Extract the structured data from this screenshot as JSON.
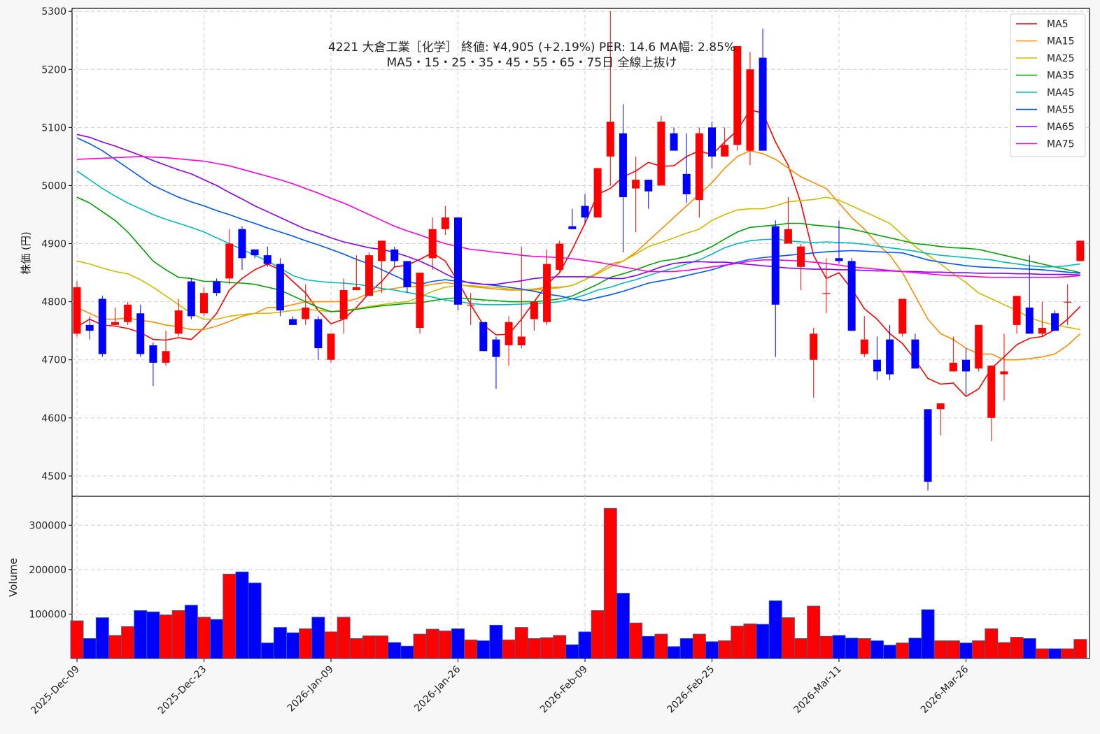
{
  "colors": {
    "background": "#f7f7f7",
    "panel": "#ffffff",
    "up": "#ff0000",
    "down": "#0000ff",
    "grid": "#cccccc",
    "frame": "#000000",
    "volume_edge": "#336699"
  },
  "chart_data": {
    "type": "candlestick",
    "title": "4221  大倉工業［化学］ 終値: ¥4,905 (+2.19%)  PER: 14.6  MA幅: 2.85%",
    "subtitle": "MA5・15・25・35・45・55・65・75日 全線上抜け",
    "ylabel": "株価 (円)",
    "volume_label": "Volume",
    "price_range": [
      4465,
      5305
    ],
    "price_ticks": [
      4500,
      4600,
      4700,
      4800,
      4900,
      5000,
      5100,
      5200,
      5300
    ],
    "volume_range": [
      0,
      365000
    ],
    "volume_ticks": [
      100000,
      200000,
      300000
    ],
    "grid": true,
    "legend_position": "top-right",
    "date_ticks": [
      {
        "i": 0,
        "label": "2025-Dec-09"
      },
      {
        "i": 10,
        "label": "2025-Dec-23"
      },
      {
        "i": 20,
        "label": "2026-Jan-09"
      },
      {
        "i": 30,
        "label": "2026-Jan-26"
      },
      {
        "i": 40,
        "label": "2026-Feb-09"
      },
      {
        "i": 50,
        "label": "2026-Feb-25"
      },
      {
        "i": 60,
        "label": "2026-Mar-11"
      },
      {
        "i": 70,
        "label": "2026-Mar-26"
      }
    ],
    "ohlc": [
      [
        4745,
        4835,
        4740,
        4825
      ],
      [
        4760,
        4775,
        4735,
        4750
      ],
      [
        4805,
        4810,
        4705,
        4710
      ],
      [
        4760,
        4790,
        4760,
        4765
      ],
      [
        4765,
        4800,
        4760,
        4795
      ],
      [
        4780,
        4795,
        4705,
        4710
      ],
      [
        4725,
        4730,
        4655,
        4695
      ],
      [
        4695,
        4750,
        4690,
        4715
      ],
      [
        4745,
        4805,
        4740,
        4785
      ],
      [
        4835,
        4840,
        4770,
        4775
      ],
      [
        4780,
        4825,
        4775,
        4815
      ],
      [
        4835,
        4840,
        4810,
        4815
      ],
      [
        4840,
        4925,
        4830,
        4900
      ],
      [
        4925,
        4930,
        4855,
        4875
      ],
      [
        4890,
        4890,
        4875,
        4880
      ],
      [
        4880,
        4895,
        4860,
        4865
      ],
      [
        4865,
        4875,
        4775,
        4785
      ],
      [
        4770,
        4775,
        4760,
        4760
      ],
      [
        4770,
        4830,
        4760,
        4790
      ],
      [
        4770,
        4775,
        4700,
        4720
      ],
      [
        4700,
        4745,
        4695,
        4745
      ],
      [
        4770,
        4840,
        4745,
        4820
      ],
      [
        4820,
        4880,
        4820,
        4825
      ],
      [
        4810,
        4885,
        4810,
        4880
      ],
      [
        4870,
        4905,
        4815,
        4905
      ],
      [
        4890,
        4895,
        4860,
        4870
      ],
      [
        4870,
        4870,
        4815,
        4825
      ],
      [
        4755,
        4850,
        4745,
        4850
      ],
      [
        4875,
        4945,
        4855,
        4925
      ],
      [
        4925,
        4965,
        4915,
        4945
      ],
      [
        4945,
        4945,
        4785,
        4795
      ],
      [
        4795,
        4815,
        4760,
        4795
      ],
      [
        4765,
        4765,
        4715,
        4715
      ],
      [
        4735,
        4740,
        4650,
        4705
      ],
      [
        4725,
        4775,
        4690,
        4765
      ],
      [
        4725,
        4895,
        4720,
        4740
      ],
      [
        4770,
        4800,
        4750,
        4800
      ],
      [
        4765,
        4890,
        4760,
        4865
      ],
      [
        4855,
        4905,
        4850,
        4900
      ],
      [
        4930,
        4960,
        4925,
        4925
      ],
      [
        4965,
        4985,
        4935,
        4945
      ],
      [
        4945,
        5030,
        4945,
        5030
      ],
      [
        5050,
        5300,
        5000,
        5110
      ],
      [
        5090,
        5140,
        4885,
        4980
      ],
      [
        4995,
        5050,
        4920,
        5010
      ],
      [
        5010,
        5010,
        4960,
        4990
      ],
      [
        5000,
        5120,
        5000,
        5110
      ],
      [
        5090,
        5100,
        5060,
        5060
      ],
      [
        5020,
        5090,
        4970,
        4985
      ],
      [
        4975,
        5100,
        4945,
        5090
      ],
      [
        5100,
        5110,
        5030,
        5050
      ],
      [
        5050,
        5100,
        5050,
        5070
      ],
      [
        5070,
        5240,
        5060,
        5240
      ],
      [
        5060,
        5230,
        5035,
        5200
      ],
      [
        5220,
        5270,
        5065,
        5060
      ],
      [
        4930,
        4940,
        4705,
        4795
      ],
      [
        4900,
        4980,
        4900,
        4925
      ],
      [
        4860,
        4900,
        4820,
        4895
      ],
      [
        4700,
        4755,
        4635,
        4745
      ],
      [
        4815,
        4875,
        4780,
        4815
      ],
      [
        4875,
        4940,
        4865,
        4870
      ],
      [
        4870,
        4875,
        4750,
        4750
      ],
      [
        4710,
        4775,
        4705,
        4735
      ],
      [
        4700,
        4740,
        4665,
        4680
      ],
      [
        4735,
        4760,
        4665,
        4675
      ],
      [
        4745,
        4805,
        4740,
        4805
      ],
      [
        4735,
        4745,
        4685,
        4685
      ],
      [
        4615,
        4615,
        4475,
        4490
      ],
      [
        4615,
        4625,
        4570,
        4625
      ],
      [
        4680,
        4740,
        4680,
        4695
      ],
      [
        4700,
        4720,
        4640,
        4680
      ],
      [
        4685,
        4760,
        4680,
        4760
      ],
      [
        4600,
        4690,
        4560,
        4690
      ],
      [
        4675,
        4745,
        4630,
        4680
      ],
      [
        4760,
        4810,
        4745,
        4810
      ],
      [
        4790,
        4880,
        4745,
        4745
      ],
      [
        4745,
        4800,
        4740,
        4755
      ],
      [
        4780,
        4785,
        4750,
        4750
      ],
      [
        4800,
        4830,
        4760,
        4800
      ],
      [
        4870,
        4905,
        4870,
        4905
      ]
    ],
    "volume": [
      85000,
      45000,
      92000,
      52000,
      72000,
      108000,
      105000,
      98000,
      108000,
      120000,
      93000,
      88000,
      190000,
      195000,
      170000,
      35000,
      70000,
      58000,
      67000,
      93000,
      60000,
      93000,
      45000,
      51000,
      51000,
      36000,
      28000,
      55000,
      66000,
      62000,
      67000,
      42000,
      40000,
      75000,
      42000,
      70000,
      45000,
      47000,
      52000,
      31000,
      60000,
      108000,
      338000,
      147000,
      80000,
      50000,
      55000,
      27000,
      45000,
      55000,
      38000,
      40000,
      73000,
      78000,
      77000,
      130000,
      92000,
      45000,
      118000,
      50000,
      52000,
      46000,
      45000,
      40000,
      30000,
      35000,
      46000,
      110000,
      40000,
      40000,
      35000,
      40000,
      67000,
      36000,
      48000,
      45000,
      22000,
      22000,
      22000,
      43000
    ],
    "series": [
      {
        "name": "MA5",
        "color": "#ff0000",
        "values": [
          4757,
          4770,
          4760,
          4758,
          4754,
          4747,
          4735,
          4734,
          4738,
          4735,
          4755,
          4780,
          4820,
          4840,
          4855,
          4865,
          4855,
          4835,
          4815,
          4785,
          4762,
          4770,
          4790,
          4815,
          4835,
          4860,
          4863,
          4873,
          4884,
          4870,
          4835,
          4795,
          4760,
          4743,
          4744,
          4770,
          4800,
          4830,
          4850,
          4890,
          4935,
          4985,
          4995,
          5015,
          5025,
          5040,
          5033,
          5034,
          5050,
          5060,
          5053,
          5075,
          5095,
          5130,
          5125,
          5075,
          5035,
          4970,
          4880,
          4840,
          4850,
          4822,
          4788,
          4770,
          4745,
          4728,
          4700,
          4668,
          4658,
          4660,
          4637,
          4650,
          4685,
          4705,
          4726,
          4737,
          4740,
          4752,
          4770,
          4792
        ]
      },
      {
        "name": "MA15",
        "color": "#ff8c00",
        "values": [
          4790,
          4780,
          4770,
          4770,
          4772,
          4768,
          4765,
          4760,
          4757,
          4752,
          4752,
          4758,
          4766,
          4775,
          4780,
          4790,
          4790,
          4795,
          4800,
          4800,
          4800,
          4800,
          4805,
          4815,
          4820,
          4823,
          4826,
          4826,
          4830,
          4833,
          4830,
          4826,
          4824,
          4822,
          4820,
          4820,
          4822,
          4825,
          4825,
          4828,
          4838,
          4850,
          4865,
          4870,
          4885,
          4905,
          4925,
          4945,
          4965,
          4985,
          5005,
          5030,
          5050,
          5060,
          5055,
          5045,
          5030,
          5015,
          5005,
          4995,
          4970,
          4945,
          4925,
          4900,
          4880,
          4850,
          4810,
          4770,
          4745,
          4735,
          4720,
          4710,
          4710,
          4700,
          4700,
          4702,
          4705,
          4710,
          4725,
          4745
        ]
      },
      {
        "name": "MA25",
        "color": "#cdbb00",
        "values": [
          4870,
          4865,
          4858,
          4852,
          4848,
          4838,
          4825,
          4810,
          4795,
          4780,
          4770,
          4770,
          4775,
          4778,
          4780,
          4780,
          4782,
          4785,
          4787,
          4785,
          4783,
          4785,
          4788,
          4792,
          4795,
          4798,
          4800,
          4808,
          4818,
          4825,
          4828,
          4828,
          4826,
          4825,
          4822,
          4820,
          4820,
          4822,
          4824,
          4828,
          4838,
          4848,
          4860,
          4870,
          4882,
          4895,
          4902,
          4910,
          4918,
          4925,
          4940,
          4950,
          4958,
          4960,
          4960,
          4965,
          4972,
          4974,
          4976,
          4980,
          4975,
          4965,
          4955,
          4945,
          4935,
          4915,
          4895,
          4880,
          4865,
          4848,
          4833,
          4815,
          4805,
          4795,
          4785,
          4773,
          4765,
          4760,
          4756,
          4752
        ]
      },
      {
        "name": "MA35",
        "color": "#00a000",
        "values": [
          4980,
          4970,
          4955,
          4940,
          4920,
          4895,
          4870,
          4855,
          4842,
          4840,
          4835,
          4835,
          4833,
          4832,
          4830,
          4825,
          4820,
          4810,
          4800,
          4790,
          4783,
          4784,
          4787,
          4790,
          4793,
          4795,
          4797,
          4798,
          4802,
          4805,
          4807,
          4805,
          4803,
          4802,
          4800,
          4800,
          4800,
          4802,
          4805,
          4810,
          4820,
          4830,
          4842,
          4848,
          4855,
          4863,
          4870,
          4873,
          4878,
          4885,
          4895,
          4908,
          4920,
          4928,
          4930,
          4932,
          4935,
          4935,
          4932,
          4930,
          4928,
          4925,
          4920,
          4915,
          4910,
          4905,
          4900,
          4898,
          4895,
          4893,
          4892,
          4890,
          4885,
          4880,
          4875,
          4870,
          4865,
          4860,
          4855,
          4850
        ]
      },
      {
        "name": "MA45",
        "color": "#00bbbb",
        "values": [
          5025,
          5010,
          4995,
          4982,
          4970,
          4960,
          4950,
          4942,
          4935,
          4928,
          4920,
          4910,
          4900,
          4890,
          4880,
          4870,
          4858,
          4845,
          4838,
          4835,
          4833,
          4832,
          4830,
          4827,
          4823,
          4820,
          4816,
          4812,
          4808,
          4803,
          4800,
          4797,
          4795,
          4795,
          4795,
          4796,
          4797,
          4798,
          4800,
          4805,
          4812,
          4820,
          4825,
          4832,
          4838,
          4845,
          4852,
          4858,
          4865,
          4872,
          4882,
          4893,
          4900,
          4905,
          4907,
          4908,
          4905,
          4903,
          4902,
          4903,
          4902,
          4901,
          4899,
          4896,
          4893,
          4890,
          4887,
          4883,
          4880,
          4878,
          4876,
          4874,
          4872,
          4868,
          4865,
          4862,
          4860,
          4860,
          4862,
          4865
        ]
      },
      {
        "name": "MA55",
        "color": "#0055ff",
        "values": [
          5082,
          5072,
          5060,
          5045,
          5030,
          5015,
          5000,
          4990,
          4980,
          4972,
          4965,
          4957,
          4950,
          4942,
          4935,
          4927,
          4920,
          4913,
          4905,
          4898,
          4890,
          4882,
          4873,
          4865,
          4855,
          4845,
          4835,
          4830,
          4835,
          4838,
          4835,
          4833,
          4830,
          4828,
          4825,
          4822,
          4818,
          4813,
          4810,
          4805,
          4802,
          4807,
          4812,
          4818,
          4825,
          4832,
          4836,
          4840,
          4845,
          4850,
          4855,
          4862,
          4868,
          4873,
          4876,
          4878,
          4880,
          4882,
          4884,
          4886,
          4887,
          4888,
          4887,
          4886,
          4885,
          4884,
          4878,
          4872,
          4868,
          4865,
          4862,
          4860,
          4859,
          4858,
          4857,
          4856,
          4855,
          4853,
          4851,
          4849
        ]
      },
      {
        "name": "MA65",
        "color": "#8800ee",
        "values": [
          5088,
          5083,
          5075,
          5068,
          5060,
          5052,
          5043,
          5035,
          5027,
          5020,
          5010,
          5000,
          4988,
          4977,
          4965,
          4955,
          4945,
          4935,
          4925,
          4918,
          4910,
          4903,
          4898,
          4893,
          4890,
          4885,
          4878,
          4870,
          4860,
          4848,
          4838,
          4832,
          4830,
          4830,
          4833,
          4836,
          4840,
          4842,
          4843,
          4843,
          4843,
          4842,
          4840,
          4840,
          4845,
          4852,
          4860,
          4866,
          4868,
          4869,
          4868,
          4868,
          4866,
          4864,
          4862,
          4860,
          4858,
          4857,
          4856,
          4856,
          4855,
          4855,
          4854,
          4853,
          4853,
          4852,
          4852,
          4851,
          4851,
          4850,
          4850,
          4849,
          4849,
          4849,
          4848,
          4848,
          4847,
          4847,
          4847,
          4846
        ]
      },
      {
        "name": "MA75",
        "color": "#ff00dd",
        "values": [
          5045,
          5046,
          5047,
          5048,
          5049,
          5050,
          5049,
          5048,
          5046,
          5044,
          5042,
          5038,
          5034,
          5028,
          5022,
          5016,
          5010,
          5003,
          4995,
          4987,
          4978,
          4970,
          4960,
          4950,
          4940,
          4930,
          4922,
          4915,
          4907,
          4900,
          4895,
          4890,
          4888,
          4885,
          4883,
          4880,
          4878,
          4877,
          4876,
          4874,
          4871,
          4868,
          4864,
          4860,
          4856,
          4852,
          4852,
          4852,
          4854,
          4857,
          4860,
          4863,
          4866,
          4870,
          4872,
          4872,
          4871,
          4870,
          4868,
          4866,
          4863,
          4860,
          4858,
          4856,
          4854,
          4852,
          4850,
          4848,
          4846,
          4845,
          4844,
          4843,
          4842,
          4842,
          4842,
          4842,
          4842,
          4842,
          4843,
          4845
        ]
      }
    ]
  }
}
